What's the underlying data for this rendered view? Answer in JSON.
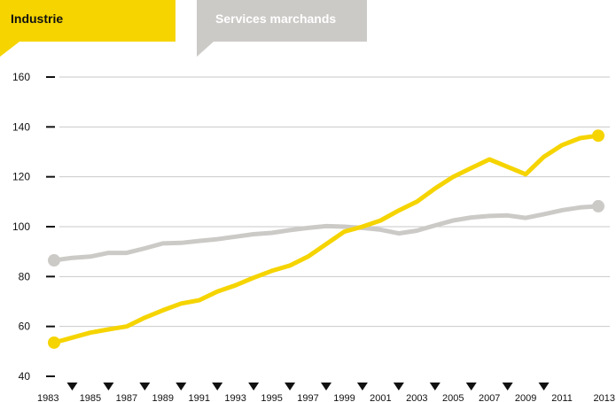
{
  "legend": {
    "industrie": "Industrie",
    "services": "Services marchands"
  },
  "colors": {
    "industrie": "#F5D400",
    "services": "#CCCAC7",
    "grid": "#C9C9C9",
    "text": "#111111"
  },
  "chart_data": {
    "type": "line",
    "title": "",
    "xlabel": "",
    "ylabel": "",
    "ylim": [
      40,
      160
    ],
    "yticks": [
      40,
      60,
      80,
      100,
      120,
      140,
      160
    ],
    "xlim": [
      1983,
      2013
    ],
    "xticks": [
      "1983",
      "1985",
      "1987",
      "1989",
      "1991",
      "1993",
      "1995",
      "1997",
      "1999",
      "2001",
      "2003",
      "2005",
      "2007",
      "2009",
      "2011",
      "2013"
    ],
    "grid": true,
    "legend_placement": "top-left",
    "x": [
      1983,
      1984,
      1985,
      1986,
      1987,
      1988,
      1989,
      1990,
      1991,
      1992,
      1993,
      1994,
      1995,
      1996,
      1997,
      1998,
      1999,
      2000,
      2001,
      2002,
      2003,
      2004,
      2005,
      2006,
      2007,
      2008,
      2009,
      2010,
      2011,
      2012,
      2013
    ],
    "series": [
      {
        "name": "Industrie",
        "color": "#F5D400",
        "values": [
          53.5,
          55.5,
          57.5,
          58.8,
          60,
          63.5,
          66.5,
          69.2,
          70.5,
          74,
          76.5,
          79.5,
          82.3,
          84.4,
          88,
          93,
          98,
          100,
          102.5,
          106.5,
          110,
          115.3,
          120,
          123.5,
          127,
          124,
          121,
          128,
          132.7,
          135.5,
          136.5
        ]
      },
      {
        "name": "Services marchands",
        "color": "#CCCAC7",
        "values": [
          86.5,
          87.5,
          88,
          89.5,
          89.5,
          91.3,
          93.3,
          93.5,
          94.3,
          95,
          96,
          97,
          97.5,
          98.6,
          99.5,
          100.2,
          100,
          99.5,
          98.8,
          97.3,
          98.4,
          100.5,
          102.5,
          103.7,
          104.3,
          104.5,
          103.5,
          105,
          106.6,
          107.7,
          108.2
        ]
      }
    ]
  }
}
